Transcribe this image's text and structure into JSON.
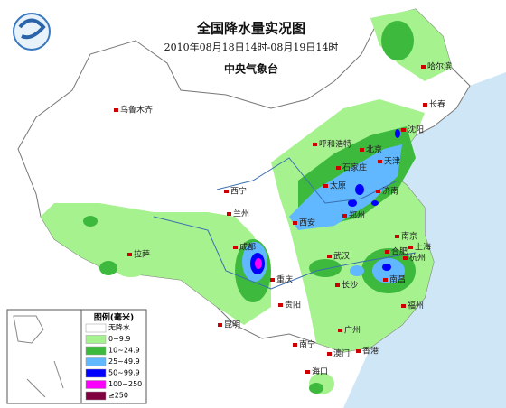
{
  "header": {
    "title": "全国降水量实况图",
    "subtitle": "2010年08月18日14时-08月19日14时",
    "agency": "中央气象台"
  },
  "cities": [
    "乌鲁木齐",
    "哈尔滨",
    "长春",
    "沈阳",
    "呼和浩特",
    "北京",
    "天津",
    "石家庄",
    "太原",
    "济南",
    "西宁",
    "兰州",
    "郑州",
    "西安",
    "南京",
    "合肥",
    "上海",
    "杭州",
    "武汉",
    "成都",
    "重庆",
    "拉萨",
    "长沙",
    "南昌",
    "贵阳",
    "福州",
    "昆明",
    "广州",
    "南宁",
    "澳门",
    "香港",
    "海口"
  ],
  "legend": {
    "title": "图例(毫米)",
    "items": [
      {
        "label": "无降水",
        "color": "#ffffff"
      },
      {
        "label": "0~9.9",
        "color": "#a6f28f"
      },
      {
        "label": "10~24.9",
        "color": "#3dba3d"
      },
      {
        "label": "25~49.9",
        "color": "#61b8ff"
      },
      {
        "label": "50~99.9",
        "color": "#0000fe"
      },
      {
        "label": "100~250",
        "color": "#fa00fa"
      },
      {
        "label": "≥250",
        "color": "#800040"
      }
    ]
  }
}
